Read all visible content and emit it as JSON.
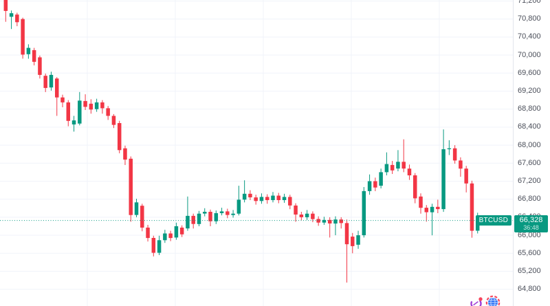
{
  "chart_data": {
    "type": "candlestick",
    "symbol": "BTCUSD",
    "current_price": 66328,
    "current_price_label": "66,328",
    "countdown": "36:48",
    "title": "",
    "xlabel": "",
    "ylabel": "",
    "legend_position": "none",
    "grid": true,
    "y_axis": {
      "min": 64600,
      "max": 71300,
      "tick_interval": 400,
      "ticks": [
        71200,
        70800,
        70400,
        70000,
        69600,
        69200,
        68800,
        68400,
        68000,
        67600,
        67200,
        66800,
        66400,
        66000,
        65600,
        65200,
        64800
      ],
      "tick_labels": [
        "71,200",
        "70,800",
        "70,400",
        "70,000",
        "69,600",
        "69,200",
        "68,800",
        "68,400",
        "68,000",
        "67,600",
        "67,200",
        "66,800",
        "66,400",
        "66,000",
        "65,600",
        "65,200",
        "64,800"
      ]
    },
    "candle_columns": [
      "open",
      "high",
      "low",
      "close"
    ],
    "candles": [
      [
        71240,
        71260,
        70740,
        70980
      ],
      [
        70850,
        70990,
        70580,
        70930
      ],
      [
        70900,
        70940,
        70640,
        70730
      ],
      [
        70800,
        70830,
        69920,
        70010
      ],
      [
        70020,
        70240,
        69920,
        70160
      ],
      [
        70110,
        70160,
        69770,
        69850
      ],
      [
        69950,
        69990,
        69480,
        69560
      ],
      [
        69540,
        69590,
        69180,
        69270
      ],
      [
        69280,
        69630,
        69210,
        69560
      ],
      [
        69480,
        69510,
        68650,
        69060
      ],
      [
        69060,
        69120,
        68840,
        68950
      ],
      [
        68950,
        69000,
        68420,
        68540
      ],
      [
        68460,
        68650,
        68300,
        68550
      ],
      [
        68480,
        69180,
        68440,
        68990
      ],
      [
        68980,
        69130,
        68780,
        68850
      ],
      [
        68920,
        69020,
        68700,
        68790
      ],
      [
        68800,
        69030,
        68740,
        68950
      ],
      [
        68950,
        69000,
        68700,
        68820
      ],
      [
        68820,
        68870,
        68560,
        68650
      ],
      [
        68650,
        68690,
        68380,
        68450
      ],
      [
        68490,
        68540,
        67820,
        67890
      ],
      [
        67930,
        67990,
        67560,
        67680
      ],
      [
        67700,
        67750,
        66300,
        66450
      ],
      [
        66450,
        66810,
        66400,
        66730
      ],
      [
        66655,
        66700,
        66090,
        66170
      ],
      [
        66170,
        66230,
        65860,
        65940
      ],
      [
        65940,
        65990,
        65530,
        65610
      ],
      [
        65610,
        65990,
        65560,
        65890
      ],
      [
        65890,
        66120,
        65830,
        66040
      ],
      [
        66040,
        66100,
        65870,
        65940
      ],
      [
        65950,
        66280,
        65900,
        66200
      ],
      [
        66170,
        66220,
        65960,
        66020
      ],
      [
        66150,
        66860,
        66100,
        66430
      ],
      [
        66430,
        66480,
        66150,
        66250
      ],
      [
        66250,
        66540,
        66200,
        66480
      ],
      [
        66480,
        66600,
        66420,
        66520
      ],
      [
        66520,
        66570,
        66200,
        66310
      ],
      [
        66310,
        66550,
        66250,
        66490
      ],
      [
        66490,
        66610,
        66440,
        66530
      ],
      [
        66530,
        66590,
        66380,
        66450
      ],
      [
        66450,
        66560,
        66390,
        66480
      ],
      [
        66480,
        67100,
        66440,
        66790
      ],
      [
        66790,
        67220,
        66730,
        66920
      ],
      [
        66920,
        67000,
        66780,
        66840
      ],
      [
        66840,
        66900,
        66680,
        66760
      ],
      [
        66760,
        66930,
        66700,
        66850
      ],
      [
        66850,
        66910,
        66700,
        66780
      ],
      [
        66780,
        66960,
        66730,
        66880
      ],
      [
        66880,
        66940,
        66710,
        66780
      ],
      [
        66780,
        66920,
        66720,
        66850
      ],
      [
        66850,
        66900,
        66580,
        66660
      ],
      [
        66660,
        66710,
        66300,
        66460
      ],
      [
        66460,
        66520,
        66330,
        66400
      ],
      [
        66400,
        66560,
        66340,
        66480
      ],
      [
        66480,
        66530,
        66290,
        66360
      ],
      [
        66360,
        66420,
        66210,
        66280
      ],
      [
        66280,
        66410,
        66230,
        66340
      ],
      [
        66340,
        66400,
        65950,
        66260
      ],
      [
        66260,
        66420,
        66000,
        66350
      ],
      [
        66350,
        66400,
        66150,
        66270
      ],
      [
        66270,
        66350,
        64950,
        65800
      ],
      [
        65970,
        66050,
        65600,
        65760
      ],
      [
        65790,
        66100,
        65700,
        66000
      ],
      [
        66000,
        67070,
        65950,
        66980
      ],
      [
        66980,
        67350,
        66900,
        67200
      ],
      [
        67200,
        67280,
        66980,
        67060
      ],
      [
        67100,
        67480,
        67040,
        67400
      ],
      [
        67400,
        67840,
        67330,
        67580
      ],
      [
        67560,
        67650,
        67360,
        67440
      ],
      [
        67480,
        67890,
        67420,
        67630
      ],
      [
        67630,
        68130,
        67400,
        67480
      ],
      [
        67480,
        67570,
        67230,
        67330
      ],
      [
        67330,
        67380,
        66710,
        66820
      ],
      [
        66860,
        66930,
        66480,
        66610
      ],
      [
        66610,
        66670,
        66300,
        66510
      ],
      [
        66510,
        66700,
        66000,
        66630
      ],
      [
        66630,
        66790,
        66490,
        66580
      ],
      [
        66580,
        68350,
        66520,
        67910
      ],
      [
        67910,
        68110,
        67780,
        67930
      ],
      [
        67930,
        68000,
        67590,
        67660
      ],
      [
        67660,
        67730,
        67300,
        67480
      ],
      [
        67480,
        67540,
        66950,
        67150
      ],
      [
        67150,
        67210,
        65945,
        66100
      ],
      [
        66100,
        66500,
        66040,
        66328
      ]
    ],
    "colors": {
      "up": "#089981",
      "down": "#F23645",
      "grid": "#F0F3FA",
      "axis_text": "#4A4E59",
      "axis_border": "#E2E5EC",
      "price_line": "#089981",
      "label_bg": "#089981",
      "label_text": "#FFFFFF",
      "background": "#FFFFFF",
      "icon_gauge": "#A13FD6",
      "icon_dot": "#F6465D",
      "icon_globe_ring": "#F6465D",
      "icon_globe_fill": "#3274F5"
    }
  }
}
